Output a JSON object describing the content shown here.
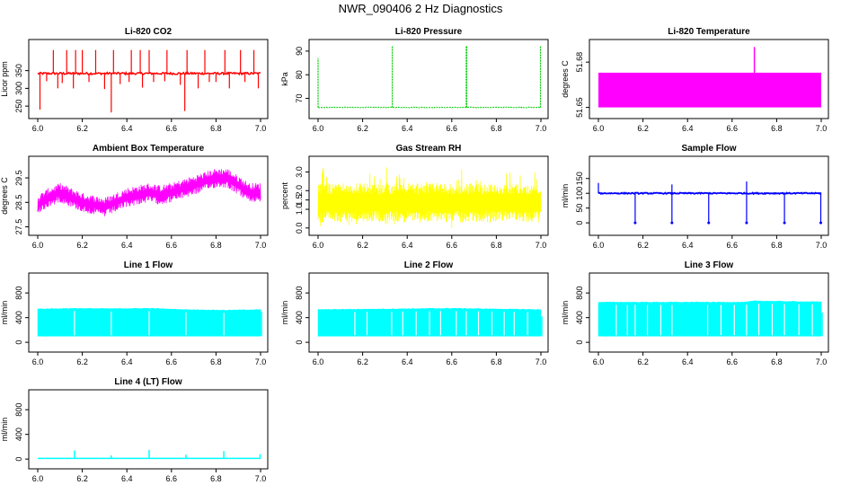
{
  "figure": {
    "title": "NWR_090406  2 Hz Diagnostics"
  },
  "chart_data": [
    {
      "type": "line",
      "title": "Li-820 CO2",
      "ylabel": "Licor ppm",
      "color": "#ff0000",
      "xlim": [
        6.0,
        7.0
      ],
      "ylim": [
        225,
        425
      ],
      "x_ticks": [
        "6.0",
        "6.2",
        "6.4",
        "6.6",
        "6.8",
        "7.0"
      ],
      "y_ticks": [
        {
          "v": 250,
          "label": "250"
        },
        {
          "v": 300,
          "label": "300"
        },
        {
          "v": 350,
          "label": "350"
        }
      ],
      "series": [
        {
          "baseline": 342,
          "noise": 3,
          "band_lo": 335,
          "band_hi": 350,
          "spikes_up": [
            6.07,
            6.13,
            6.17,
            6.2,
            6.26,
            6.34,
            6.42,
            6.46,
            6.5,
            6.58,
            6.67,
            6.75,
            6.84,
            6.91,
            6.97
          ],
          "spike_up_value": 408,
          "spikes_down": [
            {
              "x": 6.01,
              "y": 240
            },
            {
              "x": 6.04,
              "y": 320
            },
            {
              "x": 6.09,
              "y": 300
            },
            {
              "x": 6.11,
              "y": 315
            },
            {
              "x": 6.16,
              "y": 300
            },
            {
              "x": 6.23,
              "y": 318
            },
            {
              "x": 6.3,
              "y": 298
            },
            {
              "x": 6.33,
              "y": 232
            },
            {
              "x": 6.37,
              "y": 312
            },
            {
              "x": 6.41,
              "y": 318
            },
            {
              "x": 6.47,
              "y": 302
            },
            {
              "x": 6.52,
              "y": 318
            },
            {
              "x": 6.57,
              "y": 320
            },
            {
              "x": 6.64,
              "y": 310
            },
            {
              "x": 6.66,
              "y": 236
            },
            {
              "x": 6.72,
              "y": 300
            },
            {
              "x": 6.77,
              "y": 318
            },
            {
              "x": 6.8,
              "y": 318
            },
            {
              "x": 6.86,
              "y": 300
            },
            {
              "x": 6.93,
              "y": 318
            },
            {
              "x": 6.99,
              "y": 300
            }
          ]
        }
      ]
    },
    {
      "type": "line",
      "title": "Li-820 Pressure",
      "ylabel": "kPa",
      "color": "#00cc00",
      "xlim": [
        6.0,
        7.0
      ],
      "ylim": [
        63,
        93
      ],
      "x_ticks": [
        "6.0",
        "6.2",
        "6.4",
        "6.6",
        "6.8",
        "7.0"
      ],
      "y_ticks": [
        {
          "v": 70,
          "label": "70"
        },
        {
          "v": 80,
          "label": "80"
        },
        {
          "v": 90,
          "label": "90"
        }
      ],
      "series": [
        {
          "baseline": 66.2,
          "noise": 0.15,
          "spikes_up": [
            6.0,
            6.333,
            6.665,
            6.667,
            6.998
          ],
          "spike_up_values": [
            87,
            92,
            92,
            92,
            92
          ]
        }
      ]
    },
    {
      "type": "area",
      "title": "Li-820 Temperature",
      "ylabel": "degrees C",
      "color": "#ff00ff",
      "xlim": [
        6.0,
        7.0
      ],
      "ylim": [
        51.645,
        51.692
      ],
      "x_ticks": [
        "6.0",
        "6.2",
        "6.4",
        "6.6",
        "6.8",
        "7.0"
      ],
      "y_ticks": [
        {
          "v": 51.65,
          "label": "51.65"
        },
        {
          "v": 51.68,
          "label": "51.68"
        }
      ],
      "series": [
        {
          "band_lo": 51.65,
          "band_hi": 51.673,
          "spike_x": 6.7,
          "spike_value": 51.69
        }
      ]
    },
    {
      "type": "line",
      "title": "Ambient Box Temperature",
      "ylabel": "degrees C",
      "color": "#ff00ff",
      "xlim": [
        6.0,
        7.0
      ],
      "ylim": [
        27.3,
        30.2
      ],
      "x_ticks": [
        "6.0",
        "6.2",
        "6.4",
        "6.6",
        "6.8",
        "7.0"
      ],
      "y_ticks": [
        {
          "v": 27.5,
          "label": "27.5"
        },
        {
          "v": 28.5,
          "label": "28.5"
        },
        {
          "v": 29.5,
          "label": "29.5"
        }
      ],
      "series": [
        {
          "trend_x": [
            6.0,
            6.05,
            6.1,
            6.2,
            6.3,
            6.4,
            6.5,
            6.55,
            6.6,
            6.7,
            6.8,
            6.85,
            6.9,
            6.95,
            7.0
          ],
          "trend_y": [
            28.4,
            28.7,
            28.9,
            28.5,
            28.3,
            28.7,
            28.9,
            28.8,
            28.9,
            29.2,
            29.5,
            29.5,
            29.2,
            28.9,
            28.9
          ],
          "amplitude": 0.4
        }
      ]
    },
    {
      "type": "line",
      "title": "Gas Stream RH",
      "ylabel": "percent",
      "color": "#ffff00",
      "xlim": [
        6.0,
        7.0
      ],
      "ylim": [
        -0.2,
        3.6
      ],
      "x_ticks": [
        "6.0",
        "6.2",
        "6.4",
        "6.6",
        "6.8",
        "7.0"
      ],
      "y_ticks": [
        {
          "v": 0.0,
          "label": "0.0"
        },
        {
          "v": 1.0,
          "label": "1.0"
        },
        {
          "v": 1.5,
          "label": "1.5"
        },
        {
          "v": 2.0,
          "label": "2.0"
        },
        {
          "v": 3.0,
          "label": "3.0"
        }
      ],
      "series": [
        {
          "band_lo": 0.3,
          "band_hi": 2.4,
          "peak_max": 3.4,
          "peak_min": 0.0
        }
      ]
    },
    {
      "type": "line",
      "title": "Sample Flow",
      "ylabel": "ml/min",
      "color": "#0000ff",
      "xlim": [
        6.0,
        7.0
      ],
      "ylim": [
        -30,
        210
      ],
      "x_ticks": [
        "6.0",
        "6.2",
        "6.4",
        "6.6",
        "6.8",
        "7.0"
      ],
      "y_ticks": [
        {
          "v": 0,
          "label": "0"
        },
        {
          "v": 50,
          "label": "50"
        },
        {
          "v": 100,
          "label": "100"
        },
        {
          "v": 150,
          "label": "150"
        }
      ],
      "series": [
        {
          "baseline": 100,
          "noise": 2,
          "dips": [
            6.165,
            6.33,
            6.495,
            6.665,
            6.835,
            6.998
          ],
          "dip_values": [
            0,
            0,
            0,
            0,
            0,
            0
          ],
          "dip_spikes": [
            6.33,
            6.665
          ],
          "dip_spike_values": [
            130,
            140
          ]
        }
      ]
    },
    {
      "type": "area",
      "title": "Line 1 Flow",
      "ylabel": "ml/min",
      "color": "#00ffff",
      "xlim": [
        6.0,
        7.0
      ],
      "ylim": [
        -100,
        1050
      ],
      "x_ticks": [
        "6.0",
        "6.2",
        "6.4",
        "6.6",
        "6.8",
        "7.0"
      ],
      "y_ticks": [
        {
          "v": 0,
          "label": "0"
        },
        {
          "v": 400,
          "label": "400"
        },
        {
          "v": 800,
          "label": "800"
        }
      ],
      "series": [
        {
          "band_lo": 100,
          "tops_x": [
            6.0,
            6.165,
            6.33,
            6.5,
            6.665,
            6.835,
            7.0
          ],
          "tops_y": [
            540,
            550,
            545,
            550,
            530,
            520,
            530
          ],
          "gaps": [
            6.165,
            6.33,
            6.5,
            6.665,
            6.835
          ],
          "end_value": 500
        }
      ]
    },
    {
      "type": "area",
      "title": "Line 2 Flow",
      "ylabel": "ml/min",
      "color": "#00ffff",
      "xlim": [
        6.0,
        7.0
      ],
      "ylim": [
        -100,
        1050
      ],
      "x_ticks": [
        "6.0",
        "6.2",
        "6.4",
        "6.6",
        "6.8",
        "7.0"
      ],
      "y_ticks": [
        {
          "v": 0,
          "label": "0"
        },
        {
          "v": 400,
          "label": "400"
        },
        {
          "v": 800,
          "label": "800"
        }
      ],
      "series": [
        {
          "band_lo": 100,
          "tops_x": [
            6.0,
            6.3,
            6.6,
            7.0
          ],
          "tops_y": [
            530,
            540,
            550,
            530
          ],
          "gaps": [
            6.165,
            6.22,
            6.33,
            6.38,
            6.44,
            6.5,
            6.55,
            6.62,
            6.665,
            6.72,
            6.78,
            6.835,
            6.88,
            6.94
          ],
          "end_value": 420
        }
      ]
    },
    {
      "type": "area",
      "title": "Line 3 Flow",
      "ylabel": "ml/min",
      "color": "#00ffff",
      "xlim": [
        6.0,
        7.0
      ],
      "ylim": [
        -100,
        1050
      ],
      "x_ticks": [
        "6.0",
        "6.2",
        "6.4",
        "6.6",
        "6.8",
        "7.0"
      ],
      "y_ticks": [
        {
          "v": 0,
          "label": "0"
        },
        {
          "v": 400,
          "label": "400"
        },
        {
          "v": 800,
          "label": "800"
        }
      ],
      "series": [
        {
          "band_lo": 100,
          "tops_x": [
            6.0,
            6.3,
            6.66,
            6.7,
            7.0
          ],
          "tops_y": [
            650,
            650,
            650,
            670,
            655
          ],
          "gaps": [
            6.08,
            6.13,
            6.165,
            6.22,
            6.28,
            6.33,
            6.49,
            6.55,
            6.61,
            6.665,
            6.72,
            6.78,
            6.835,
            6.9,
            6.96
          ],
          "end_value": 480
        }
      ]
    },
    {
      "type": "line",
      "title": "Line 4 (LT) Flow",
      "ylabel": "ml/min",
      "color": "#00ffff",
      "xlim": [
        6.0,
        7.0
      ],
      "ylim": [
        -100,
        1050
      ],
      "x_ticks": [
        "6.0",
        "6.2",
        "6.4",
        "6.6",
        "6.8",
        "7.0"
      ],
      "y_ticks": [
        {
          "v": 0,
          "label": "0"
        },
        {
          "v": 400,
          "label": "400"
        },
        {
          "v": 800,
          "label": "800"
        }
      ],
      "series": [
        {
          "baseline": 10,
          "spikes_x": [
            6.165,
            6.33,
            6.5,
            6.665,
            6.835,
            6.998
          ],
          "spikes_y": [
            140,
            60,
            150,
            70,
            130,
            80
          ]
        }
      ]
    }
  ]
}
